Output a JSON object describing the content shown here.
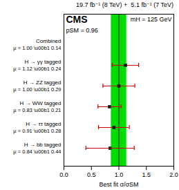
{
  "chart_data": {
    "type": "errorbar",
    "orientation": "horizontal",
    "title": "19.7 fb⁻¹ (8 TeV) +  5.1 fb⁻¹ (7 TeV)",
    "experiment": "CMS",
    "mass_label": "mH = 125 GeV",
    "p_value_label": "pSM = 0.96",
    "xlabel": "Best fit σ/σSM",
    "categories": [
      "Combined",
      "H → γγ tagged",
      "H → ZZ tagged",
      "H → WW tagged",
      "H → ττ tagged",
      "H → bb tagged"
    ],
    "row_notes": [
      "μ = 1.00 \\u00b1 0.14",
      "μ = 1.12 \\u00b1 0.24",
      "μ = 1.00 \\u00b1 0.29",
      "μ = 0.83 \\u00b1 0.21",
      "μ = 0.91 \\u00b1 0.28",
      "μ = 0.84 \\u00b1 0.44"
    ],
    "values": [
      null,
      1.12,
      1.0,
      0.83,
      0.91,
      0.84
    ],
    "errors": [
      null,
      0.24,
      0.29,
      0.21,
      0.28,
      0.44
    ],
    "color": "#111111",
    "error_color": "#cc0000",
    "band": [
      0.86,
      1.14
    ],
    "band_color": "#00dd00",
    "reference_line": 1.0,
    "reference_line_color": "black",
    "marker": "square",
    "xlim": [
      0,
      2
    ],
    "xticks": [
      {
        "value": 0,
        "label": "0.0"
      },
      0.5,
      {
        "value": 1,
        "label": "1.0"
      },
      1.5,
      {
        "value": 2,
        "label": "2.0"
      }
    ],
    "grid": false
  }
}
